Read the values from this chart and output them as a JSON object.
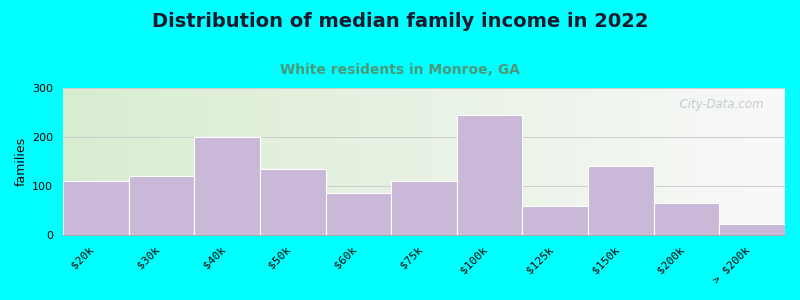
{
  "title": "Distribution of median family income in 2022",
  "subtitle": "White residents in Monroe, GA",
  "ylabel": "families",
  "categories": [
    "$20k",
    "$30k",
    "$40k",
    "$50k",
    "$60k",
    "$75k",
    "$100k",
    "$125k",
    "$150k",
    "$200k",
    "> $200k"
  ],
  "values": [
    110,
    120,
    200,
    135,
    85,
    110,
    245,
    58,
    140,
    65,
    22
  ],
  "bar_color": "#c9b8d8",
  "bar_edge_color": "#ffffff",
  "background_outer": "#00ffff",
  "background_inner_left": "#d8ecd0",
  "background_inner_right": "#f8f8f8",
  "title_fontsize": 14,
  "subtitle_fontsize": 10,
  "subtitle_color": "#4a9a7a",
  "ylabel_fontsize": 9,
  "tick_fontsize": 8,
  "ylim": [
    0,
    300
  ],
  "yticks": [
    0,
    100,
    200,
    300
  ],
  "watermark_text": "  City-Data.com",
  "watermark_color": "#b8c4c8"
}
